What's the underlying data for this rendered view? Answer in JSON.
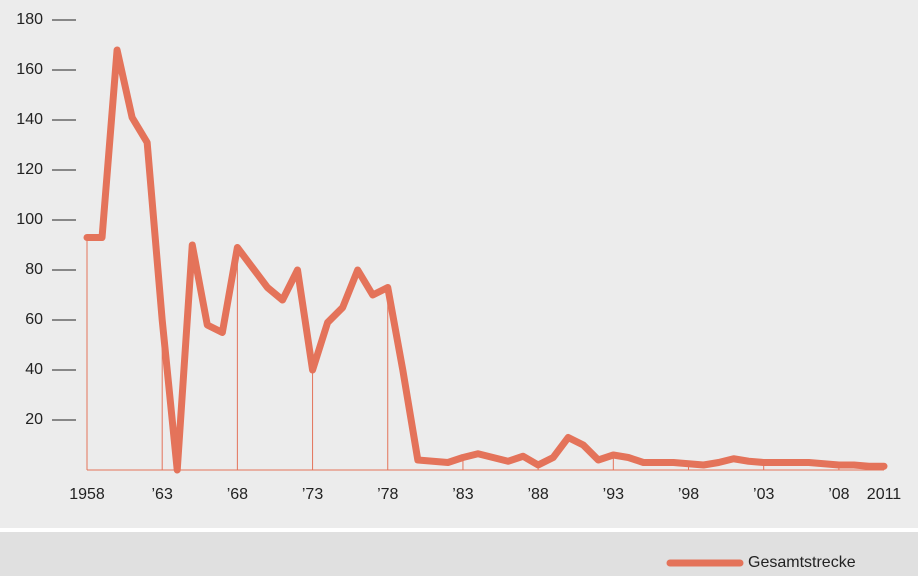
{
  "chart_data": {
    "type": "line",
    "x": [
      1958,
      1959,
      1960,
      1961,
      1962,
      1963,
      1964,
      1965,
      1966,
      1967,
      1968,
      1969,
      1970,
      1971,
      1972,
      1973,
      1974,
      1975,
      1976,
      1977,
      1978,
      1979,
      1980,
      1981,
      1982,
      1983,
      1984,
      1985,
      1986,
      1987,
      1988,
      1989,
      1990,
      1991,
      1992,
      1993,
      1994,
      1995,
      1996,
      1997,
      1998,
      1999,
      2000,
      2001,
      2002,
      2003,
      2004,
      2005,
      2006,
      2007,
      2008,
      2009,
      2010,
      2011
    ],
    "series": [
      {
        "name": "Gesamtstrecke",
        "color": "#e4735a",
        "values": [
          93,
          93,
          168,
          141,
          131,
          60,
          0,
          90,
          58,
          55,
          89,
          81,
          73,
          68,
          80,
          40,
          59,
          65,
          80,
          70,
          73,
          40,
          4,
          3.5,
          3,
          5,
          6.5,
          5,
          3.5,
          5.5,
          2,
          5,
          13,
          10,
          4,
          6,
          5,
          3,
          3,
          3,
          2.5,
          2,
          3,
          4.5,
          3.5,
          3,
          3,
          3,
          3,
          2.5,
          2,
          2,
          1.5,
          1.5
        ]
      }
    ],
    "xlim": [
      1958,
      2011
    ],
    "xticks": [
      1958,
      {
        "value": 1963,
        "label": "’63"
      },
      {
        "value": 1968,
        "label": "’68"
      },
      {
        "value": 1973,
        "label": "’73"
      },
      {
        "value": 1978,
        "label": "’78"
      },
      {
        "value": 1983,
        "label": "’83"
      },
      {
        "value": 1988,
        "label": "’88"
      },
      {
        "value": 1993,
        "label": "’93"
      },
      {
        "value": 1998,
        "label": "’98"
      },
      {
        "value": 2003,
        "label": "’03"
      },
      {
        "value": 2008,
        "label": "’08"
      },
      2011
    ],
    "ylim": [
      0,
      180
    ],
    "yticks": [
      20,
      40,
      60,
      80,
      100,
      120,
      140,
      160,
      180
    ],
    "legend": "bottom-right"
  }
}
